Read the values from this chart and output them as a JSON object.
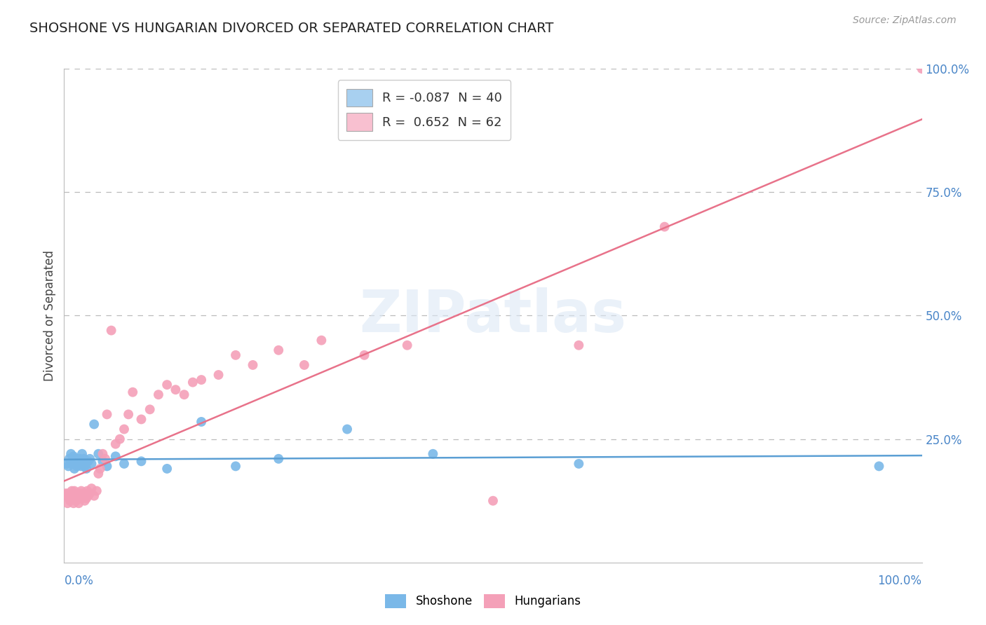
{
  "title": "SHOSHONE VS HUNGARIAN DIVORCED OR SEPARATED CORRELATION CHART",
  "source": "Source: ZipAtlas.com",
  "ylabel": "Divorced or Separated",
  "shoshone_color": "#7ab8e8",
  "shoshone_edge_color": "#7ab8e8",
  "hungarian_color": "#f4a0b8",
  "hungarian_edge_color": "#f4a0b8",
  "shoshone_line_color": "#5b9fd4",
  "hungarian_line_color": "#e8728a",
  "legend_shoshone_color": "#a8d0f0",
  "legend_hungarian_color": "#f8c0d0",
  "watermark": "ZIPatlas",
  "shoshone_x": [
    0.3,
    0.5,
    0.6,
    0.8,
    0.9,
    1.0,
    1.1,
    1.2,
    1.3,
    1.4,
    1.5,
    1.6,
    1.7,
    1.8,
    1.9,
    2.0,
    2.1,
    2.2,
    2.3,
    2.4,
    2.5,
    2.6,
    2.8,
    3.0,
    3.2,
    3.5,
    4.0,
    4.5,
    5.0,
    6.0,
    7.0,
    9.0,
    12.0,
    16.0,
    20.0,
    25.0,
    33.0,
    43.0,
    60.0,
    95.0
  ],
  "shoshone_y": [
    20.0,
    19.5,
    21.0,
    22.0,
    20.5,
    20.0,
    21.5,
    19.0,
    20.5,
    21.0,
    19.5,
    20.0,
    20.5,
    21.0,
    20.0,
    19.5,
    22.0,
    20.5,
    21.0,
    19.5,
    20.0,
    19.0,
    20.5,
    21.0,
    20.0,
    28.0,
    22.0,
    20.5,
    19.5,
    21.5,
    20.0,
    20.5,
    19.0,
    28.5,
    19.5,
    21.0,
    27.0,
    22.0,
    20.0,
    19.5
  ],
  "hungarian_x": [
    0.2,
    0.3,
    0.4,
    0.5,
    0.6,
    0.7,
    0.8,
    0.9,
    1.0,
    1.1,
    1.2,
    1.3,
    1.4,
    1.5,
    1.6,
    1.7,
    1.8,
    1.9,
    2.0,
    2.1,
    2.2,
    2.3,
    2.4,
    2.5,
    2.6,
    2.7,
    2.8,
    3.0,
    3.2,
    3.5,
    3.8,
    4.0,
    4.2,
    4.5,
    4.8,
    5.0,
    5.5,
    6.0,
    6.5,
    7.0,
    7.5,
    8.0,
    9.0,
    10.0,
    11.0,
    12.0,
    13.0,
    14.0,
    15.0,
    16.0,
    18.0,
    20.0,
    22.0,
    25.0,
    28.0,
    30.0,
    35.0,
    40.0,
    50.0,
    60.0,
    70.0,
    100.0
  ],
  "hungarian_y": [
    14.0,
    13.5,
    12.0,
    14.0,
    13.0,
    12.5,
    13.5,
    14.5,
    13.0,
    12.0,
    14.5,
    13.0,
    12.5,
    14.0,
    13.5,
    12.0,
    14.0,
    13.5,
    14.5,
    13.0,
    14.0,
    13.5,
    12.5,
    14.0,
    13.0,
    14.5,
    13.5,
    14.0,
    15.0,
    13.5,
    14.5,
    18.0,
    19.0,
    22.0,
    21.0,
    30.0,
    47.0,
    24.0,
    25.0,
    27.0,
    30.0,
    34.5,
    29.0,
    31.0,
    34.0,
    36.0,
    35.0,
    34.0,
    36.5,
    37.0,
    38.0,
    42.0,
    40.0,
    43.0,
    40.0,
    45.0,
    42.0,
    44.0,
    12.5,
    44.0,
    68.0,
    100.0
  ]
}
